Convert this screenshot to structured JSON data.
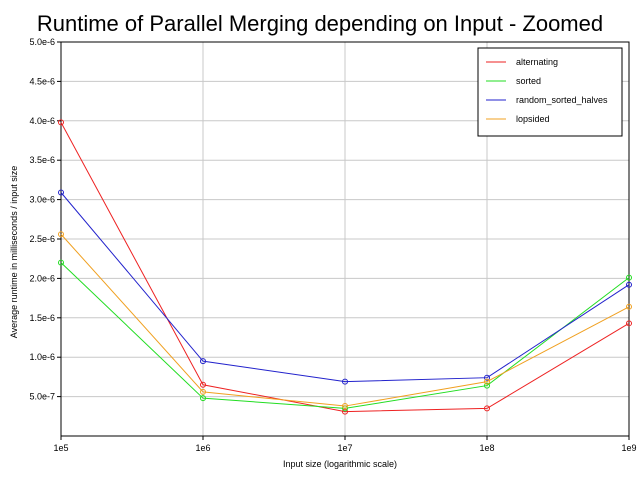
{
  "chart_data": {
    "type": "line",
    "title": "Runtime of Parallel Merging depending on Input - Zoomed",
    "xlabel": "Input size (logarithmic scale)",
    "ylabel": "Average runtime in milliseconds / input size",
    "x_scale": "log",
    "x": [
      100000,
      1000000,
      10000000,
      100000000,
      1000000000
    ],
    "x_tick_labels": [
      "1e5",
      "1e6",
      "1e7",
      "1e8",
      "1e9"
    ],
    "ylim": [
      0,
      5e-06
    ],
    "y_ticks": [
      5e-07,
      1e-06,
      1.5e-06,
      2e-06,
      2.5e-06,
      3e-06,
      3.5e-06,
      4e-06,
      4.5e-06,
      5e-06
    ],
    "y_tick_labels": [
      "5.0e-7",
      "1.0e-6",
      "1.5e-6",
      "2.0e-6",
      "2.5e-6",
      "3.0e-6",
      "3.5e-6",
      "4.0e-6",
      "4.5e-6",
      "5.0e-6"
    ],
    "grid": true,
    "legend_position": "top-right",
    "series": [
      {
        "name": "alternating",
        "color": "#ee2222",
        "values": [
          3.98e-06,
          6.5e-07,
          3.1e-07,
          3.5e-07,
          1.43e-06
        ]
      },
      {
        "name": "sorted",
        "color": "#22dd22",
        "values": [
          2.2e-06,
          4.8e-07,
          3.5e-07,
          6.4e-07,
          2.01e-06
        ]
      },
      {
        "name": "random_sorted_halves",
        "color": "#2222cc",
        "values": [
          3.09e-06,
          9.5e-07,
          6.9e-07,
          7.4e-07,
          1.92e-06
        ]
      },
      {
        "name": "lopsided",
        "color": "#f0a020",
        "values": [
          2.56e-06,
          5.6e-07,
          3.8e-07,
          6.9e-07,
          1.64e-06
        ]
      }
    ]
  }
}
